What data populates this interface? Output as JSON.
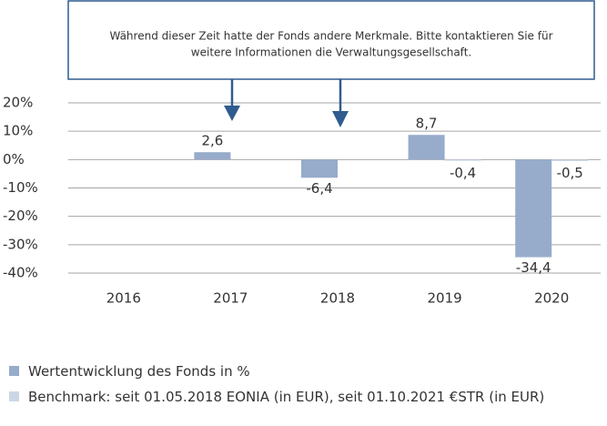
{
  "chart_data": {
    "type": "bar",
    "annotation": [
      "Während dieser Zeit hatte der Fonds andere Merkmale. Bitte kontaktieren Sie für",
      "weitere Informationen die Verwaltungsgesellschaft."
    ],
    "categories": [
      "2016",
      "2017",
      "2018",
      "2019",
      "2020"
    ],
    "series": [
      {
        "name": "Wertentwicklung des Fonds in %",
        "color": "#97abcb",
        "values": [
          null,
          2.6,
          -6.4,
          8.7,
          -34.4
        ],
        "value_labels": [
          null,
          "2,6",
          "-6,4",
          "8,7",
          "-34,4"
        ]
      },
      {
        "name": "Benchmark: seit 01.05.2018 EONIA (in EUR), seit 01.10.2021 €STR (in EUR)",
        "color": "#cbd7e6",
        "values": [
          null,
          null,
          null,
          -0.4,
          -0.5
        ],
        "value_labels": [
          null,
          null,
          null,
          "-0,4",
          "-0,5"
        ]
      }
    ],
    "ylim": [
      -40,
      20
    ],
    "yticks": [
      {
        "value": 20,
        "label": "20%"
      },
      {
        "value": 10,
        "label": "10%"
      },
      {
        "value": 0,
        "label": "0%"
      },
      {
        "value": -10,
        "label": "-10%"
      },
      {
        "value": -20,
        "label": "-20%"
      },
      {
        "value": -30,
        "label": "-30%"
      },
      {
        "value": -40,
        "label": "-40%"
      }
    ],
    "grid": true
  }
}
